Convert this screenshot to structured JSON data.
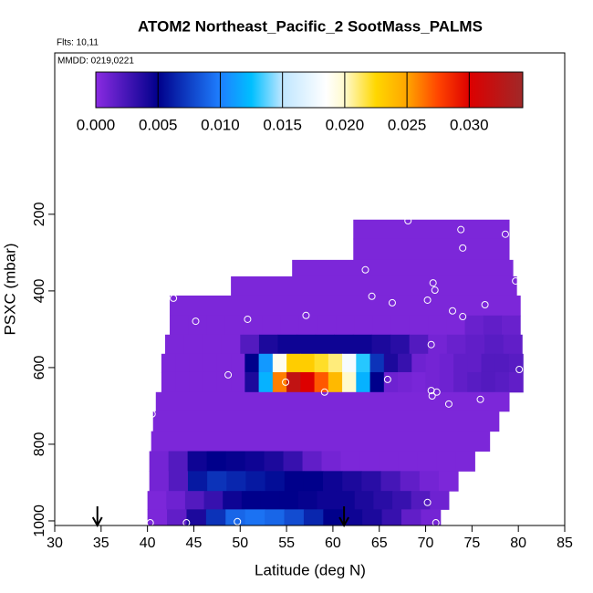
{
  "chart_data": {
    "type": "heatmap",
    "title": "ATOM2 Northeast_Pacific_2 SootMass_PALMS",
    "flights": "Flts: 10,11",
    "dates": "MMDD: 0219,0221",
    "x_label": "Latitude (deg N)",
    "y_label": "PSXC (mbar)",
    "xlim": [
      30,
      85
    ],
    "xticks": [
      30,
      35,
      40,
      45,
      50,
      55,
      60,
      65,
      70,
      75,
      80,
      85
    ],
    "ylim": [
      1012,
      -221
    ],
    "yticks": [
      200,
      400,
      600,
      800,
      1000
    ],
    "clim": [
      0,
      0.0343
    ],
    "cticks": [
      {
        "value": 0,
        "label": "0.000"
      },
      {
        "value": 0.005,
        "label": "0.005"
      },
      {
        "value": 0.01,
        "label": "0.010"
      },
      {
        "value": 0.015,
        "label": "0.015"
      },
      {
        "value": 0.02,
        "label": "0.020"
      },
      {
        "value": 0.025,
        "label": "0.025"
      },
      {
        "value": 0.03,
        "label": "0.030"
      }
    ],
    "colorscale": [
      [
        0,
        "#8a2be2"
      ],
      [
        0.005,
        "#00008b"
      ],
      [
        0.01,
        "#1e7fff"
      ],
      [
        0.0125,
        "#00bfff"
      ],
      [
        0.015,
        "#bfe6ff"
      ],
      [
        0.0185,
        "#ffffff"
      ],
      [
        0.02,
        "#fffacd"
      ],
      [
        0.0225,
        "#ffd700"
      ],
      [
        0.025,
        "#ffa500"
      ],
      [
        0.0275,
        "#ff4500"
      ],
      [
        0.03,
        "#dd0000"
      ],
      [
        0.0343,
        "#a02828"
      ]
    ],
    "rows": [
      {
        "p": [
          214,
          264
        ],
        "lat": [
          62.2,
          79.0
        ],
        "values": [
          0.0005
        ]
      },
      {
        "p": [
          264,
          319
        ],
        "lat": [
          62.2,
          79.0
        ],
        "values": [
          0.0005
        ]
      },
      {
        "p": [
          319,
          362
        ],
        "lat": [
          55.6,
          79.4
        ],
        "values": [
          0.0005
        ]
      },
      {
        "p": [
          362,
          412
        ],
        "lat": [
          49.0,
          79.8
        ],
        "values": [
          0.0005
        ]
      },
      {
        "p": [
          412,
          464
        ],
        "lat": [
          42.4,
          80.2
        ],
        "values": [
          0.0005
        ]
      },
      {
        "p": [
          464,
          514
        ],
        "lat": [
          42.4,
          80.2
        ],
        "values": [
          0.0005,
          0.0005,
          0.0005,
          0.0005,
          0.0005,
          0.0005,
          0.0005,
          0.0005,
          0.0005,
          0.0005,
          0.0005,
          0.0005,
          0.0005,
          0.0005,
          0.0005,
          0.0005,
          0.0012,
          0.0015,
          0.0012
        ]
      },
      {
        "p": [
          514,
          564
        ],
        "lat": [
          41.9,
          80.4
        ],
        "values": [
          0.0005,
          0.0005,
          0.0005,
          0.0005,
          0.002,
          0.004,
          0.0045,
          0.0045,
          0.0045,
          0.0045,
          0.0045,
          0.004,
          0.0035,
          0.002,
          0.0008,
          0.0012,
          0.0015,
          0.0018,
          0.0015
        ]
      },
      {
        "p": [
          564,
          612
        ],
        "lat": [
          41.5,
          80.5
        ],
        "values": [
          0.0005,
          0.0005,
          0.0005,
          0.0005,
          0.0005,
          0.0005,
          0.005,
          0.011,
          0.019,
          0.023,
          0.023,
          0.022,
          0.021,
          0.018,
          0.013,
          0.007,
          0.004,
          0.003,
          0.001,
          0.0008,
          0.001,
          0.0015,
          0.0015,
          0.002,
          0.002,
          0.0018
        ]
      },
      {
        "p": [
          612,
          664
        ],
        "lat": [
          41.5,
          80.5
        ],
        "values": [
          0.0005,
          0.0005,
          0.0005,
          0.0005,
          0.0005,
          0.0005,
          0.004,
          0.012,
          0.026,
          0.032,
          0.03,
          0.027,
          0.024,
          0.02,
          0.012,
          0.005,
          0.001,
          0.0008,
          0.0006,
          0.0008,
          0.001,
          0.0015,
          0.0018,
          0.002,
          0.0018,
          0.0015
        ]
      },
      {
        "p": [
          664,
          714
        ],
        "lat": [
          40.9,
          79.0
        ],
        "values": [
          0.0005
        ]
      },
      {
        "p": [
          714,
          766
        ],
        "lat": [
          40.6,
          77.9
        ],
        "values": [
          0.0005
        ]
      },
      {
        "p": [
          766,
          818
        ],
        "lat": [
          40.4,
          76.9
        ],
        "values": [
          0.0005
        ]
      },
      {
        "p": [
          818,
          870
        ],
        "lat": [
          40.2,
          75.3
        ],
        "values": [
          0.0008,
          0.002,
          0.0045,
          0.005,
          0.0048,
          0.0045,
          0.004,
          0.003,
          0.0015,
          0.0008,
          0.0005,
          0.0005,
          0.0005,
          0.0005,
          0.0005,
          0.0005,
          0.0005
        ]
      },
      {
        "p": [
          870,
          922
        ],
        "lat": [
          40.2,
          73.5
        ],
        "values": [
          0.0008,
          0.002,
          0.006,
          0.007,
          0.0065,
          0.006,
          0.0055,
          0.005,
          0.005,
          0.0045,
          0.004,
          0.0035,
          0.0025,
          0.0015,
          0.0008,
          0.0005
        ]
      },
      {
        "p": [
          922,
          970
        ],
        "lat": [
          40.0,
          72.5
        ],
        "values": [
          0.0005,
          0.001,
          0.002,
          0.003,
          0.0045,
          0.005,
          0.005,
          0.005,
          0.0048,
          0.0045,
          0.0045,
          0.004,
          0.0035,
          0.003,
          0.002,
          0.001
        ]
      },
      {
        "p": [
          970,
          1012
        ],
        "lat": [
          40.0,
          71.6
        ],
        "values": [
          0.0005,
          0.0015,
          0.004,
          0.007,
          0.009,
          0.0095,
          0.009,
          0.008,
          0.0065,
          0.005,
          0.0045,
          0.004,
          0.003,
          0.0015,
          0.0008
        ]
      }
    ],
    "points": {
      "color": "#ffffff",
      "x": [
        68.1,
        73.8,
        78.6,
        74.0,
        63.5,
        79.7,
        70.8,
        42.8,
        64.2,
        71.0,
        66.4,
        70.2,
        76.4,
        45.2,
        50.8,
        57.1,
        72.9,
        74.0,
        70.6,
        80.1,
        48.7,
        54.9,
        65.9,
        59.1,
        70.6,
        70.7,
        71.2,
        72.5,
        75.9,
        40.5,
        70.2,
        40.3,
        44.2,
        49.7,
        71.1
      ],
      "y": [
        217,
        240,
        252,
        288,
        345,
        374,
        379,
        419,
        414,
        398,
        431,
        424,
        436,
        479,
        474,
        464,
        452,
        467,
        540,
        605,
        619,
        638,
        631,
        664,
        660,
        674,
        664,
        695,
        683,
        721,
        952,
        1005,
        1005,
        1002,
        1005
      ]
    },
    "arrows": [
      34.6,
      61.2
    ]
  }
}
